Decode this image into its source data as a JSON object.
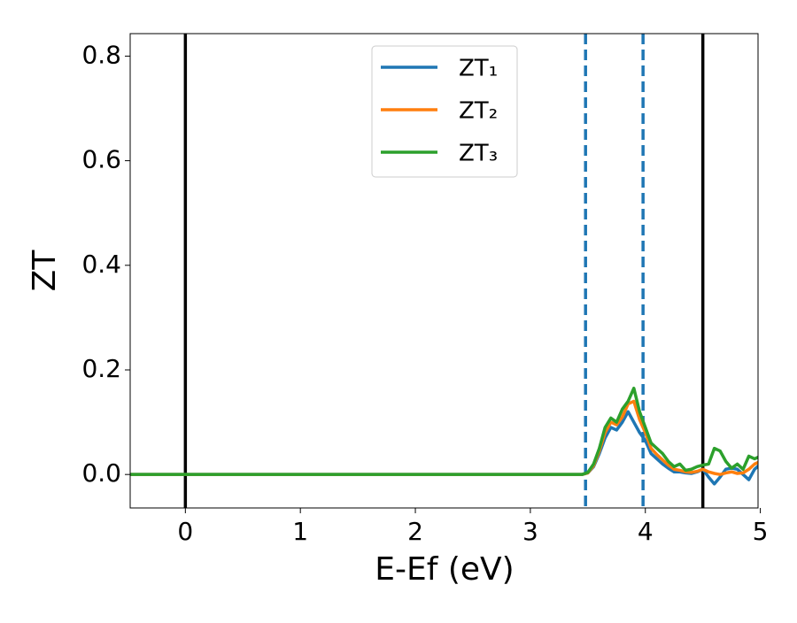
{
  "chart_data": {
    "type": "line",
    "xlabel": "E-Ef (eV)",
    "ylabel": "ZT",
    "x": [
      -0.5,
      3.45,
      3.5,
      3.55,
      3.6,
      3.65,
      3.7,
      3.75,
      3.8,
      3.85,
      3.9,
      3.95,
      4.0,
      4.05,
      4.1,
      4.15,
      4.2,
      4.25,
      4.3,
      4.35,
      4.4,
      4.45,
      4.5,
      4.55,
      4.6,
      4.65,
      4.7,
      4.75,
      4.8,
      4.85,
      4.9,
      4.95,
      5.0
    ],
    "series": [
      {
        "name": "ZT₁",
        "color": "#1f77b4",
        "values": [
          0,
          0,
          0.003,
          0.015,
          0.04,
          0.07,
          0.09,
          0.085,
          0.1,
          0.12,
          0.1,
          0.08,
          0.065,
          0.04,
          0.03,
          0.02,
          0.012,
          0.005,
          0.005,
          0.003,
          0.002,
          0.005,
          0.01,
          -0.005,
          -0.018,
          -0.005,
          0.01,
          0.012,
          0.01,
          0.0,
          -0.01,
          0.01,
          0.02
        ]
      },
      {
        "name": "ZT₂",
        "color": "#ff7f0e",
        "values": [
          0,
          0,
          0.003,
          0.017,
          0.045,
          0.08,
          0.1,
          0.095,
          0.11,
          0.135,
          0.14,
          0.105,
          0.08,
          0.05,
          0.038,
          0.028,
          0.018,
          0.01,
          0.008,
          0.005,
          0.004,
          0.006,
          0.01,
          0.005,
          0.002,
          0.0,
          0.003,
          0.005,
          0.002,
          0.003,
          0.01,
          0.02,
          0.025
        ]
      },
      {
        "name": "ZT₃",
        "color": "#2ca02c",
        "values": [
          0,
          0,
          0.004,
          0.02,
          0.05,
          0.09,
          0.108,
          0.1,
          0.125,
          0.14,
          0.165,
          0.12,
          0.09,
          0.06,
          0.05,
          0.04,
          0.025,
          0.015,
          0.02,
          0.008,
          0.01,
          0.015,
          0.018,
          0.02,
          0.05,
          0.045,
          0.025,
          0.012,
          0.02,
          0.01,
          0.035,
          0.03,
          0.035
        ]
      }
    ],
    "vlines": [
      {
        "x": 0,
        "color": "#000000",
        "style": "solid"
      },
      {
        "x": 4.5,
        "color": "#000000",
        "style": "solid"
      },
      {
        "x": 3.48,
        "color": "#1f77b4",
        "style": "dashed"
      },
      {
        "x": 3.98,
        "color": "#1f77b4",
        "style": "dashed"
      }
    ],
    "xlim": [
      -0.48,
      4.98
    ],
    "ylim": [
      -0.064,
      0.843
    ],
    "xticks": [
      0,
      1,
      2,
      3,
      4,
      5
    ],
    "yticks": [
      {
        "value": 0,
        "label": "0.0"
      },
      0.2,
      0.4,
      0.6,
      0.8
    ],
    "legend": "upper center",
    "grid": false
  }
}
